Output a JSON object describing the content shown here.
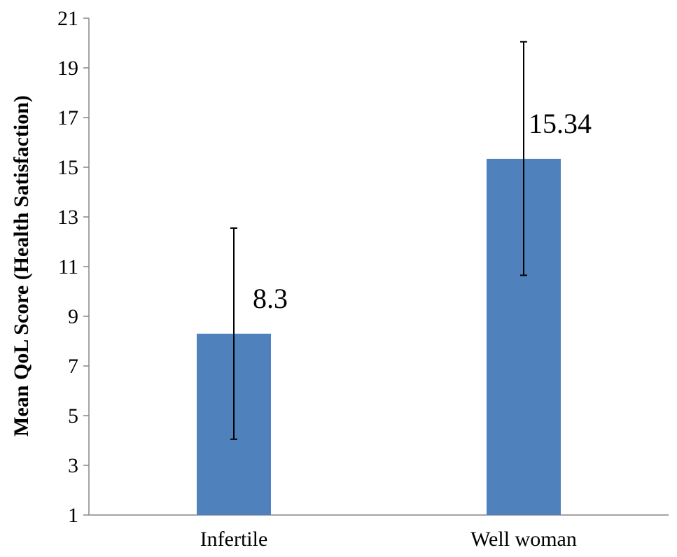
{
  "chart_data": {
    "type": "bar",
    "title": "",
    "xlabel": "",
    "ylabel": "Mean QoL Score (Health Satisfaction)",
    "categories": [
      "Infertile",
      "Well woman"
    ],
    "values": [
      8.3,
      15.34
    ],
    "data_labels": [
      "8.3",
      "15.34"
    ],
    "error_low": [
      4.05,
      10.65
    ],
    "error_high": [
      12.55,
      20.05
    ],
    "ylim": [
      1,
      21
    ],
    "yticks": [
      1,
      3,
      5,
      7,
      9,
      11,
      13,
      15,
      17,
      19,
      21
    ],
    "grid": false,
    "legend": "none",
    "bar_color": "#4f81bd"
  }
}
